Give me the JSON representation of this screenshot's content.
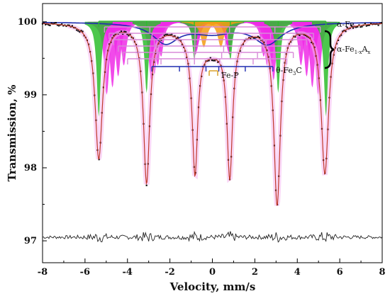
{
  "chart_data": {
    "type": "line",
    "title": "",
    "xlabel": "Velocity, mm/s",
    "ylabel": "Transmission, %",
    "xlim": [
      -8,
      8
    ],
    "ylim": [
      96.7,
      100.25
    ],
    "xticks": [
      "-8",
      "-6",
      "-4",
      "-2",
      "0",
      "2",
      "4",
      "6",
      "8"
    ],
    "yticks": [
      "97",
      "98",
      "99",
      "100"
    ],
    "grid": false,
    "legend": "none",
    "series": [
      {
        "role": "fitted envelope",
        "color": "#c0392b",
        "lines": [
          {
            "pos": -5.35,
            "depth": 1.85,
            "w": 0.42
          },
          {
            "pos": -3.1,
            "depth": 2.15,
            "w": 0.36
          },
          {
            "pos": -0.82,
            "depth": 1.85,
            "w": 0.32
          },
          {
            "pos": 0.82,
            "depth": 1.9,
            "w": 0.32
          },
          {
            "pos": 3.05,
            "depth": 2.45,
            "w": 0.37
          },
          {
            "pos": 5.3,
            "depth": 2.05,
            "w": 0.42
          }
        ],
        "broad_dip": {
          "center": 0.0,
          "depth": 0.35,
          "w": 2.2
        }
      },
      {
        "role": "experimental points",
        "color": "#111111",
        "source": "envelope with scatter"
      },
      {
        "role": "θ-Fe3C broad component",
        "color": "#1f2db0",
        "dips": [
          {
            "pos": -2.2,
            "depth": 0.3,
            "w": 1.5
          },
          {
            "pos": 2.6,
            "depth": 0.32,
            "w": 1.6
          },
          {
            "pos": 0.0,
            "depth": 0.15,
            "w": 2.5
          }
        ]
      },
      {
        "role": "residual",
        "color": "#222222",
        "baseline": 97.05
      }
    ],
    "subspectra": [
      {
        "name": "α-Fe",
        "color": "#2dbd2d",
        "peaks": [
          -5.35,
          -3.1,
          -0.85,
          0.85,
          3.1,
          5.35
        ],
        "depth": 1.3,
        "w": 0.22
      },
      {
        "name": "α-Fe1-xAx",
        "color": "#ee2ae6",
        "sextets": [
          {
            "shift": 0.0,
            "scale": 0.93,
            "depth": 1.0
          },
          {
            "shift": 0.0,
            "scale": 0.88,
            "depth": 0.9
          },
          {
            "shift": 0.0,
            "scale": 0.83,
            "depth": 0.75
          },
          {
            "shift": 0.0,
            "scale": 0.78,
            "depth": 0.6
          }
        ],
        "w": 0.3
      },
      {
        "name": "Fe-P",
        "color": "#f39c12",
        "peaks": [
          -0.4,
          0.4
        ],
        "depth": 0.35,
        "w": 0.35
      }
    ],
    "bar_diagrams": [
      {
        "name": "α-Fe",
        "color": "#2dbd2d",
        "y": 100.15
      },
      {
        "name": "α-Fe1-xAx",
        "color": "#d88ad8",
        "rows": 6
      },
      {
        "name": "θ-Fe3C",
        "color": "#1f2db0"
      },
      {
        "name": "Fe-P",
        "color": "#d79b1a"
      }
    ]
  },
  "annotations": {
    "alpha_fe": "α-Fe",
    "alpha_fe_alloy_main": "α-Fe",
    "alpha_fe_alloy_sub1": "1-x",
    "alpha_fe_alloy_mid": "A",
    "alpha_fe_alloy_sub2": "x",
    "theta_fe3c_main": "θ-Fe",
    "theta_fe3c_sub": "3",
    "theta_fe3c_end": "C",
    "fe_p": "Fe-P"
  }
}
